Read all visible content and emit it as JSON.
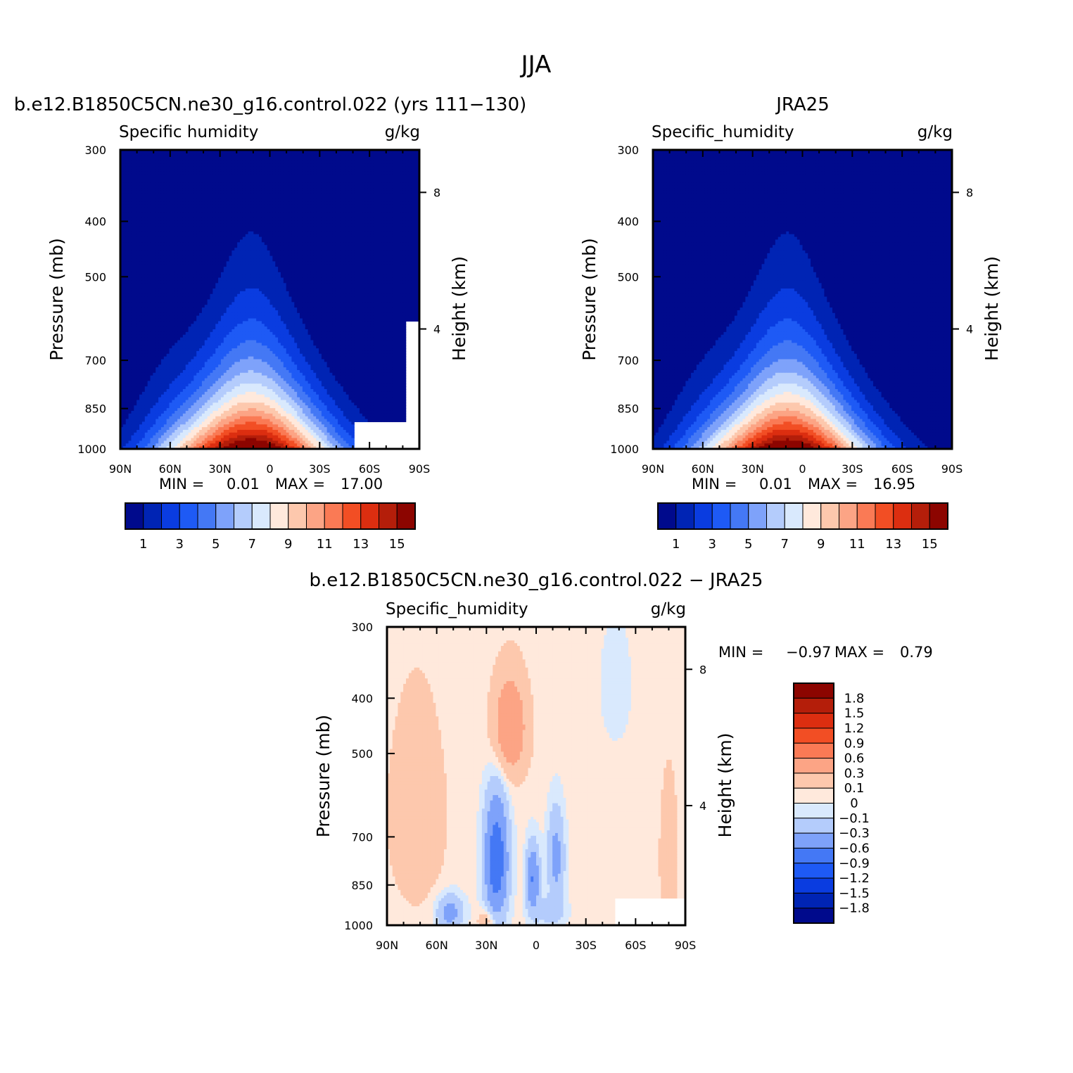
{
  "figure_title": "JJA",
  "chart_data": [
    {
      "id": "model",
      "type": "contour",
      "title": "b.e12.B1850C5CN.ne30_g16.control.022 (yrs 111-130)",
      "left_label": "Specific humidity",
      "units": "g/kg",
      "ylabel": "Pressure (mb)",
      "right_label": "Height (km)",
      "x_ticks": [
        "90N",
        "60N",
        "30N",
        "0",
        "30S",
        "60S",
        "90S"
      ],
      "y_ticks": [
        "300",
        "400",
        "500",
        "700",
        "850",
        "1000"
      ],
      "right_ticks": [
        "8",
        "4"
      ],
      "x_range": [
        90,
        -90
      ],
      "y_range_mb": [
        1000,
        300
      ],
      "scale": "log pressure",
      "min_label": "MIN =",
      "min_value": "0.01",
      "max_label": "MAX =",
      "max_value": "17.00",
      "levels": [
        1,
        2,
        3,
        4,
        5,
        6,
        7,
        8,
        9,
        10,
        11,
        12,
        13,
        14,
        15
      ],
      "colorbar_ticks": [
        "1",
        "3",
        "5",
        "7",
        "9",
        "11",
        "13",
        "15"
      ]
    },
    {
      "id": "obs",
      "type": "contour",
      "title": "JRA25",
      "left_label": "Specific_humidity",
      "units": "g/kg",
      "ylabel": "Pressure (mb)",
      "right_label": "Height (km)",
      "x_ticks": [
        "90N",
        "60N",
        "30N",
        "0",
        "30S",
        "60S",
        "90S"
      ],
      "y_ticks": [
        "300",
        "400",
        "500",
        "700",
        "850",
        "1000"
      ],
      "right_ticks": [
        "8",
        "4"
      ],
      "x_range": [
        90,
        -90
      ],
      "y_range_mb": [
        1000,
        300
      ],
      "scale": "log pressure",
      "min_label": "MIN =",
      "min_value": "0.01",
      "max_label": "MAX =",
      "max_value": "16.95",
      "levels": [
        1,
        2,
        3,
        4,
        5,
        6,
        7,
        8,
        9,
        10,
        11,
        12,
        13,
        14,
        15
      ],
      "colorbar_ticks": [
        "1",
        "3",
        "5",
        "7",
        "9",
        "11",
        "13",
        "15"
      ]
    },
    {
      "id": "diff",
      "type": "contour",
      "title": "b.e12.B1850C5CN.ne30_g16.control.022 - JRA25",
      "left_label": "Specific_humidity",
      "units": "g/kg",
      "ylabel": "Pressure (mb)",
      "right_label": "Height (km)",
      "x_ticks": [
        "90N",
        "60N",
        "30N",
        "0",
        "30S",
        "60S",
        "90S"
      ],
      "y_ticks": [
        "300",
        "400",
        "500",
        "700",
        "850",
        "1000"
      ],
      "right_ticks": [
        "8",
        "4"
      ],
      "x_range": [
        90,
        -90
      ],
      "y_range_mb": [
        1000,
        300
      ],
      "scale": "log pressure",
      "min_label": "MIN =",
      "min_value": "-0.97",
      "max_label": "MAX =",
      "max_value": "0.79",
      "levels": [
        -1.8,
        -1.5,
        -1.2,
        -0.9,
        -0.6,
        -0.3,
        -0.1,
        0,
        0.1,
        0.3,
        0.6,
        0.9,
        1.2,
        1.5,
        1.8
      ],
      "colorbar_ticks": [
        "1.8",
        "1.5",
        "1.2",
        "0.9",
        "0.6",
        "0.3",
        "0.1",
        "0",
        "-0.1",
        "-0.3",
        "-0.6",
        "-0.9",
        "-1.2",
        "-1.5",
        "-1.8"
      ]
    }
  ],
  "palette": [
    "#000a8c",
    "#0024b4",
    "#0a3ce0",
    "#1e5af5",
    "#4478f5",
    "#7ea2fa",
    "#b4ccfc",
    "#d9e9fd",
    "#ffe9dc",
    "#fdc8ad",
    "#fca485",
    "#fa7a55",
    "#f24e24",
    "#dc2e10",
    "#b41e0a",
    "#8c0500"
  ],
  "missing_color": "#ffffff"
}
